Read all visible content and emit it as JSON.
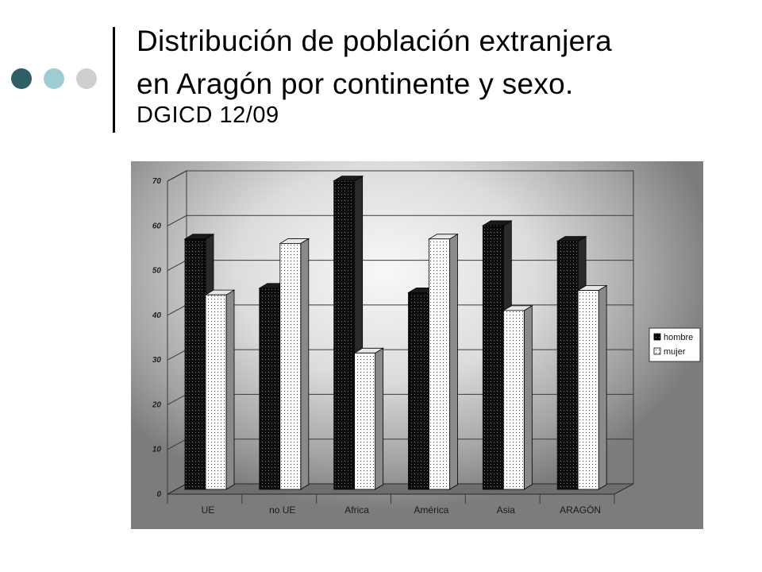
{
  "slide": {
    "title_line1": "Distribución de población extranjera",
    "title_line2": "en Aragón por continente y sexo.",
    "title_line3": "DGICD 12/09",
    "bullet_colors": [
      "#2f5e66",
      "#9fccd2",
      "#cfcfcf"
    ]
  },
  "chart_data": {
    "type": "bar",
    "categories": [
      "UE",
      "no UE",
      "Africa",
      "América",
      "Asia",
      "ARAGÓN"
    ],
    "series": [
      {
        "name": "hombre",
        "values": [
          56,
          45,
          69,
          44,
          59,
          55.5
        ]
      },
      {
        "name": "mujer",
        "values": [
          43.5,
          55,
          30.5,
          56,
          40,
          44.5
        ]
      }
    ],
    "yticks": [
      0,
      10,
      20,
      30,
      40,
      50,
      60,
      70
    ],
    "ylim": [
      0,
      70
    ],
    "grid": true,
    "legend": "right",
    "colors": {
      "hombre": "#111111",
      "mujer": "#ffffff"
    }
  }
}
